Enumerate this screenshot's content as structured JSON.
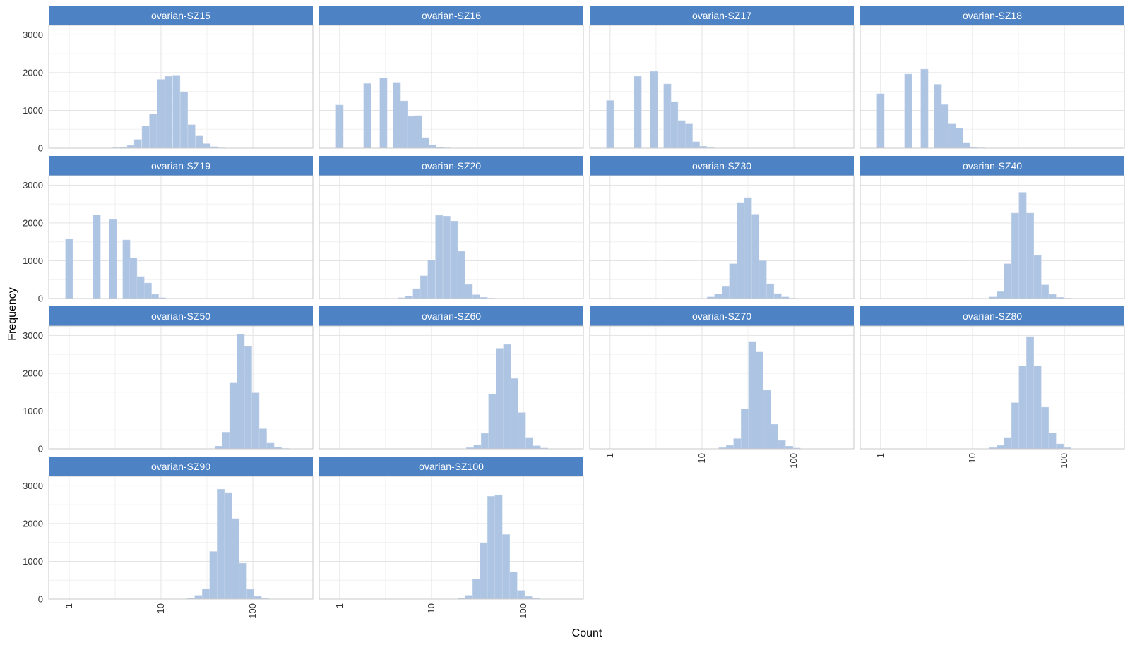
{
  "chart_data": {
    "type": "bar",
    "xlabel": "Count",
    "ylabel": "Frequency",
    "x_scale": "log10",
    "xlim": [
      0.6,
      450
    ],
    "ylim": [
      0,
      3250
    ],
    "x_ticks": [
      {
        "value": 1,
        "label": "1"
      },
      {
        "value": 10,
        "label": "10"
      },
      {
        "value": 100,
        "label": "100"
      }
    ],
    "y_ticks": [
      {
        "value": 0,
        "label": "0"
      },
      {
        "value": 1000,
        "label": "1000"
      },
      {
        "value": 2000,
        "label": "2000"
      },
      {
        "value": 3000,
        "label": "3000"
      }
    ],
    "grid": true,
    "bar_color": "#AEC4E3",
    "strip_color": "#4D82C4",
    "panels": [
      {
        "title": "ovarian-SZ15",
        "bins": [
          {
            "x": 3.2,
            "y": 15
          },
          {
            "x": 3.9,
            "y": 30
          },
          {
            "x": 4.7,
            "y": 70
          },
          {
            "x": 5.6,
            "y": 230
          },
          {
            "x": 6.8,
            "y": 580
          },
          {
            "x": 8.2,
            "y": 900
          },
          {
            "x": 10,
            "y": 1820
          },
          {
            "x": 12,
            "y": 1900
          },
          {
            "x": 14.7,
            "y": 1930
          },
          {
            "x": 17.8,
            "y": 1490
          },
          {
            "x": 21.5,
            "y": 620
          },
          {
            "x": 26,
            "y": 320
          },
          {
            "x": 31.5,
            "y": 120
          },
          {
            "x": 38,
            "y": 40
          },
          {
            "x": 46,
            "y": 10
          }
        ]
      },
      {
        "title": "ovarian-SZ16",
        "bins": [
          {
            "x": 1,
            "y": 1140
          },
          {
            "x": 2,
            "y": 1710
          },
          {
            "x": 3,
            "y": 1860
          },
          {
            "x": 4.2,
            "y": 1740
          },
          {
            "x": 5,
            "y": 1250
          },
          {
            "x": 6,
            "y": 840
          },
          {
            "x": 7.2,
            "y": 860
          },
          {
            "x": 8.6,
            "y": 280
          },
          {
            "x": 10.3,
            "y": 90
          },
          {
            "x": 12.3,
            "y": 30
          },
          {
            "x": 14.7,
            "y": 10
          }
        ]
      },
      {
        "title": "ovarian-SZ17",
        "bins": [
          {
            "x": 1,
            "y": 1260
          },
          {
            "x": 2,
            "y": 1900
          },
          {
            "x": 3,
            "y": 2030
          },
          {
            "x": 4.2,
            "y": 1700
          },
          {
            "x": 5,
            "y": 1230
          },
          {
            "x": 6,
            "y": 730
          },
          {
            "x": 7.2,
            "y": 640
          },
          {
            "x": 8.6,
            "y": 170
          },
          {
            "x": 10.3,
            "y": 50
          },
          {
            "x": 12.3,
            "y": 15
          }
        ]
      },
      {
        "title": "ovarian-SZ18",
        "bins": [
          {
            "x": 1,
            "y": 1440
          },
          {
            "x": 2,
            "y": 1960
          },
          {
            "x": 3,
            "y": 2090
          },
          {
            "x": 4.2,
            "y": 1690
          },
          {
            "x": 5,
            "y": 1150
          },
          {
            "x": 6,
            "y": 640
          },
          {
            "x": 7.2,
            "y": 530
          },
          {
            "x": 8.6,
            "y": 150
          },
          {
            "x": 10.3,
            "y": 30
          },
          {
            "x": 12.3,
            "y": 10
          }
        ]
      },
      {
        "title": "ovarian-SZ19",
        "bins": [
          {
            "x": 1,
            "y": 1580
          },
          {
            "x": 2,
            "y": 2210
          },
          {
            "x": 3,
            "y": 2090
          },
          {
            "x": 4.2,
            "y": 1550
          },
          {
            "x": 5,
            "y": 1080
          },
          {
            "x": 6,
            "y": 580
          },
          {
            "x": 7.2,
            "y": 410
          },
          {
            "x": 8.6,
            "y": 110
          },
          {
            "x": 10.3,
            "y": 20
          }
        ]
      },
      {
        "title": "ovarian-SZ20",
        "bins": [
          {
            "x": 4.7,
            "y": 20
          },
          {
            "x": 5.7,
            "y": 60
          },
          {
            "x": 6.9,
            "y": 260
          },
          {
            "x": 8.3,
            "y": 600
          },
          {
            "x": 10,
            "y": 1020
          },
          {
            "x": 12.1,
            "y": 2200
          },
          {
            "x": 14.6,
            "y": 2180
          },
          {
            "x": 17.6,
            "y": 2050
          },
          {
            "x": 21.2,
            "y": 1250
          },
          {
            "x": 25.5,
            "y": 370
          },
          {
            "x": 30.8,
            "y": 100
          },
          {
            "x": 37.1,
            "y": 30
          },
          {
            "x": 44.7,
            "y": 10
          }
        ]
      },
      {
        "title": "ovarian-SZ30",
        "bins": [
          {
            "x": 12.5,
            "y": 40
          },
          {
            "x": 15,
            "y": 120
          },
          {
            "x": 18.1,
            "y": 330
          },
          {
            "x": 21.8,
            "y": 920
          },
          {
            "x": 26.3,
            "y": 2540
          },
          {
            "x": 31.7,
            "y": 2670
          },
          {
            "x": 38.2,
            "y": 2230
          },
          {
            "x": 46,
            "y": 1000
          },
          {
            "x": 55.4,
            "y": 390
          },
          {
            "x": 66.8,
            "y": 130
          },
          {
            "x": 80.5,
            "y": 40
          },
          {
            "x": 97,
            "y": 10
          }
        ]
      },
      {
        "title": "ovarian-SZ40",
        "bins": [
          {
            "x": 16.7,
            "y": 40
          },
          {
            "x": 20.1,
            "y": 180
          },
          {
            "x": 24.2,
            "y": 920
          },
          {
            "x": 29.2,
            "y": 2260
          },
          {
            "x": 35.2,
            "y": 2810
          },
          {
            "x": 42.4,
            "y": 2260
          },
          {
            "x": 51.1,
            "y": 1140
          },
          {
            "x": 61.5,
            "y": 360
          },
          {
            "x": 74.1,
            "y": 110
          },
          {
            "x": 89.3,
            "y": 30
          },
          {
            "x": 107.6,
            "y": 10
          }
        ]
      },
      {
        "title": "ovarian-SZ50",
        "bins": [
          {
            "x": 42.2,
            "y": 70
          },
          {
            "x": 50.8,
            "y": 440
          },
          {
            "x": 61.2,
            "y": 1740
          },
          {
            "x": 73.8,
            "y": 3030
          },
          {
            "x": 88.9,
            "y": 2720
          },
          {
            "x": 107,
            "y": 1480
          },
          {
            "x": 129,
            "y": 530
          },
          {
            "x": 155.4,
            "y": 150
          },
          {
            "x": 187.2,
            "y": 40
          },
          {
            "x": 225.6,
            "y": 10
          }
        ]
      },
      {
        "title": "ovarian-SZ60",
        "bins": [
          {
            "x": 26.2,
            "y": 30
          },
          {
            "x": 31.6,
            "y": 100
          },
          {
            "x": 38,
            "y": 410
          },
          {
            "x": 45.8,
            "y": 1450
          },
          {
            "x": 55.2,
            "y": 2660
          },
          {
            "x": 66.5,
            "y": 2760
          },
          {
            "x": 80.1,
            "y": 1860
          },
          {
            "x": 96.5,
            "y": 960
          },
          {
            "x": 116.3,
            "y": 300
          },
          {
            "x": 140.1,
            "y": 80
          },
          {
            "x": 168.8,
            "y": 20
          }
        ]
      },
      {
        "title": "ovarian-SZ70",
        "bins": [
          {
            "x": 16.7,
            "y": 30
          },
          {
            "x": 20.1,
            "y": 90
          },
          {
            "x": 24.2,
            "y": 270
          },
          {
            "x": 29.2,
            "y": 1060
          },
          {
            "x": 35.2,
            "y": 2840
          },
          {
            "x": 42.4,
            "y": 2560
          },
          {
            "x": 51.1,
            "y": 1550
          },
          {
            "x": 61.5,
            "y": 650
          },
          {
            "x": 74.1,
            "y": 220
          },
          {
            "x": 89.3,
            "y": 70
          },
          {
            "x": 107.6,
            "y": 20
          }
        ]
      },
      {
        "title": "ovarian-SZ80",
        "bins": [
          {
            "x": 16.7,
            "y": 30
          },
          {
            "x": 20.1,
            "y": 90
          },
          {
            "x": 24.2,
            "y": 300
          },
          {
            "x": 29.2,
            "y": 1220
          },
          {
            "x": 35.2,
            "y": 2200
          },
          {
            "x": 42.4,
            "y": 2970
          },
          {
            "x": 51.1,
            "y": 2200
          },
          {
            "x": 61.5,
            "y": 1100
          },
          {
            "x": 74.1,
            "y": 420
          },
          {
            "x": 89.3,
            "y": 130
          },
          {
            "x": 107.6,
            "y": 30
          }
        ]
      },
      {
        "title": "ovarian-SZ90",
        "bins": [
          {
            "x": 21.2,
            "y": 30
          },
          {
            "x": 25.5,
            "y": 100
          },
          {
            "x": 30.8,
            "y": 270
          },
          {
            "x": 37.1,
            "y": 1260
          },
          {
            "x": 44.7,
            "y": 2910
          },
          {
            "x": 53.8,
            "y": 2820
          },
          {
            "x": 64.8,
            "y": 2130
          },
          {
            "x": 78.1,
            "y": 950
          },
          {
            "x": 94.1,
            "y": 260
          },
          {
            "x": 113.4,
            "y": 70
          },
          {
            "x": 136.6,
            "y": 20
          }
        ]
      },
      {
        "title": "ovarian-SZ100",
        "bins": [
          {
            "x": 21.2,
            "y": 30
          },
          {
            "x": 25.5,
            "y": 100
          },
          {
            "x": 30.8,
            "y": 530
          },
          {
            "x": 37.1,
            "y": 1490
          },
          {
            "x": 44.7,
            "y": 2720
          },
          {
            "x": 53.8,
            "y": 2760
          },
          {
            "x": 64.8,
            "y": 1710
          },
          {
            "x": 78.1,
            "y": 720
          },
          {
            "x": 94.1,
            "y": 230
          },
          {
            "x": 113.4,
            "y": 70
          },
          {
            "x": 136.6,
            "y": 20
          }
        ]
      }
    ]
  }
}
